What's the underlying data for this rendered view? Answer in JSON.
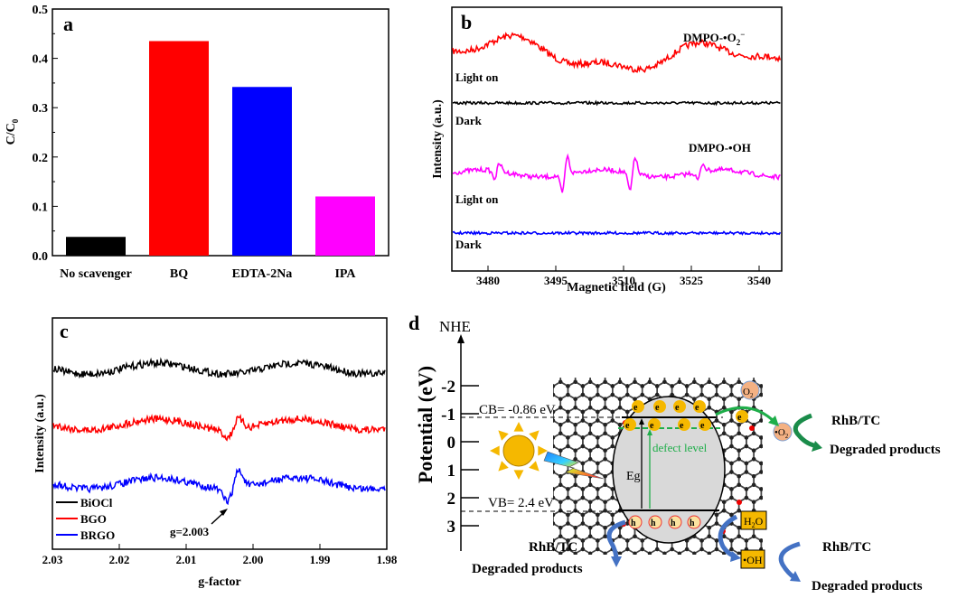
{
  "chart_data": [
    {
      "panel": "a",
      "type": "bar",
      "panel_label": "a",
      "categories": [
        "No scavenger",
        "BQ",
        "EDTA-2Na",
        "IPA"
      ],
      "values": [
        0.038,
        0.435,
        0.342,
        0.12
      ],
      "colors": [
        "#000000",
        "#ff0000",
        "#0000ff",
        "#ff00ff"
      ],
      "xlabel": "",
      "ylabel": "C/C",
      "ylabel_sub": "0",
      "ylim": [
        0,
        0.5
      ],
      "yticks": [
        "0.0",
        "0.1",
        "0.2",
        "0.3",
        "0.4",
        "0.5"
      ]
    },
    {
      "panel": "b",
      "type": "line",
      "panel_label": "b",
      "xlabel": "Magnetic field (G)",
      "ylabel": "Intensity (a.u.)",
      "xlim": [
        3472,
        3545
      ],
      "xticks": [
        "3480",
        "3495",
        "3510",
        "3525",
        "3540"
      ],
      "xtick_values": [
        3480,
        3495,
        3510,
        3525,
        3540
      ],
      "series": [
        {
          "name": "DMPO-•O2− Light on",
          "label": "Light on",
          "color": "#ff0000",
          "kind": "superoxide"
        },
        {
          "name": "DMPO-•O2− Dark",
          "label": "Dark",
          "color": "#000000",
          "kind": "flat"
        },
        {
          "name": "DMPO-•OH Light on",
          "label": "Light on",
          "color": "#ff00ff",
          "kind": "hydroxyl",
          "peaks": [
            3482,
            3497,
            3512,
            3527
          ]
        },
        {
          "name": "DMPO-•OH Dark",
          "label": "Dark",
          "color": "#0000ff",
          "kind": "flat"
        }
      ],
      "annotations": {
        "superoxide": "DMPO-•O",
        "superoxide_sub": "2",
        "superoxide_sup": "−",
        "hydroxyl": "DMPO-•OH"
      }
    },
    {
      "panel": "c",
      "type": "line",
      "panel_label": "c",
      "xlabel": "g-factor",
      "ylabel": "Intensity (a.u.)",
      "xlim": [
        2.03,
        1.98
      ],
      "xticks": [
        "2.03",
        "2.02",
        "2.01",
        "2.00",
        "1.99",
        "1.98"
      ],
      "xtick_values": [
        2.03,
        2.02,
        2.01,
        2.0,
        1.99,
        1.98
      ],
      "series": [
        {
          "name": "BiOCl",
          "color": "#000000",
          "signal": 0
        },
        {
          "name": "BGO",
          "color": "#ff0000",
          "signal": 0.6
        },
        {
          "name": "BRGO",
          "color": "#0000ff",
          "signal": 1
        }
      ],
      "legend_position": "bottom-left",
      "annotation": "g=2.003",
      "annotation_g": 2.003
    }
  ],
  "diagram": {
    "panel_label": "d",
    "axis_title": "NHE",
    "ylabel": "Potential (eV)",
    "yticks": [
      "-2",
      "-1",
      "0",
      "1",
      "2",
      "3"
    ],
    "cb_label": "CB= -0.86 eV",
    "vb_label": "VB= 2.4 eV",
    "cb_value": -0.86,
    "vb_value": 2.4,
    "electron": "e",
    "hole": "h",
    "eg_label": "Eg",
    "defect_label": "defect level",
    "o2": "O",
    "o2_sub": "2",
    "superoxide": "•O",
    "h2o": "H",
    "h2o_tail": "O",
    "oh": "•OH",
    "pollutant": "RhB/TC",
    "products": "Degraded products"
  }
}
